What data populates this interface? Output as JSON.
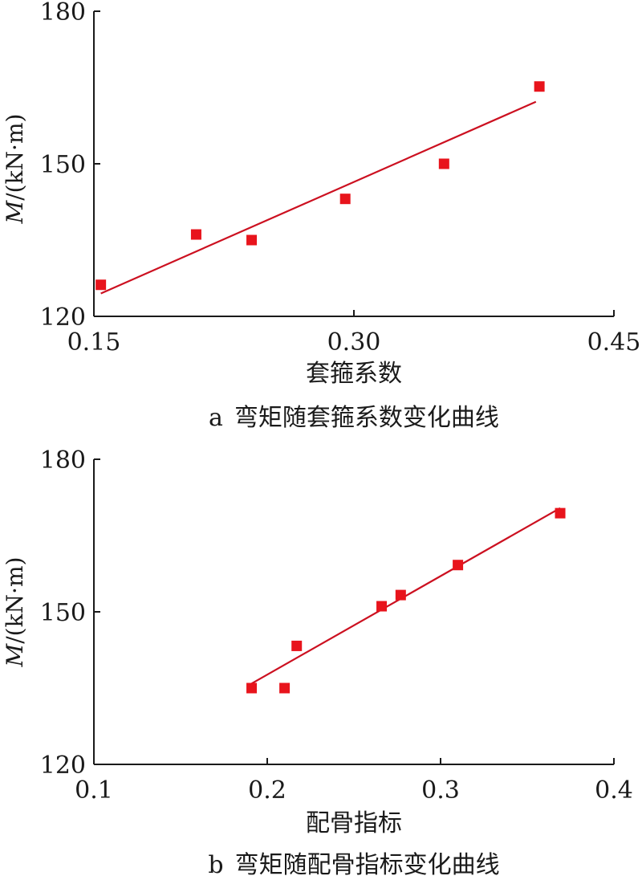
{
  "chart_data": [
    {
      "type": "scatter",
      "panel_label": "a",
      "caption": "弯矩随套箍系数变化曲线",
      "xlabel": "套箍系数",
      "ylabel_var": "M",
      "ylabel_unit": "/(kN·m)",
      "xlim": [
        0.15,
        0.45
      ],
      "ylim": [
        120,
        180
      ],
      "x_ticks": [
        "0.15",
        "0.30",
        "0.45"
      ],
      "y_ticks": [
        "120",
        "150",
        "180"
      ],
      "series": [
        {
          "points": [
            {
              "x": 0.154,
              "y": 126.2
            },
            {
              "x": 0.209,
              "y": 136.1
            },
            {
              "x": 0.241,
              "y": 135.0
            },
            {
              "x": 0.295,
              "y": 143.1
            },
            {
              "x": 0.352,
              "y": 150.0
            },
            {
              "x": 0.407,
              "y": 165.2
            }
          ],
          "fit_line": [
            {
              "x": 0.154,
              "y": 124.5
            },
            {
              "x": 0.405,
              "y": 162.2
            }
          ]
        }
      ],
      "colors": {
        "marker": "#e8141c",
        "line": "#cc1020"
      }
    },
    {
      "type": "scatter",
      "panel_label": "b",
      "caption": "弯矩随配骨指标变化曲线",
      "xlabel": "配骨指标",
      "ylabel_var": "M",
      "ylabel_unit": "/(kN·m)",
      "xlim": [
        0.1,
        0.4
      ],
      "ylim": [
        120,
        180
      ],
      "x_ticks": [
        "0.1",
        "0.2",
        "0.3",
        "0.4"
      ],
      "y_ticks": [
        "120",
        "150",
        "180"
      ],
      "series": [
        {
          "points": [
            {
              "x": 0.191,
              "y": 135.0
            },
            {
              "x": 0.21,
              "y": 135.0
            },
            {
              "x": 0.217,
              "y": 143.3
            },
            {
              "x": 0.266,
              "y": 151.1
            },
            {
              "x": 0.277,
              "y": 153.3
            },
            {
              "x": 0.31,
              "y": 159.2
            },
            {
              "x": 0.369,
              "y": 169.4
            }
          ],
          "fit_line": [
            {
              "x": 0.191,
              "y": 135.9
            },
            {
              "x": 0.369,
              "y": 170.4
            }
          ]
        }
      ],
      "colors": {
        "marker": "#e8141c",
        "line": "#cc1020"
      }
    }
  ]
}
